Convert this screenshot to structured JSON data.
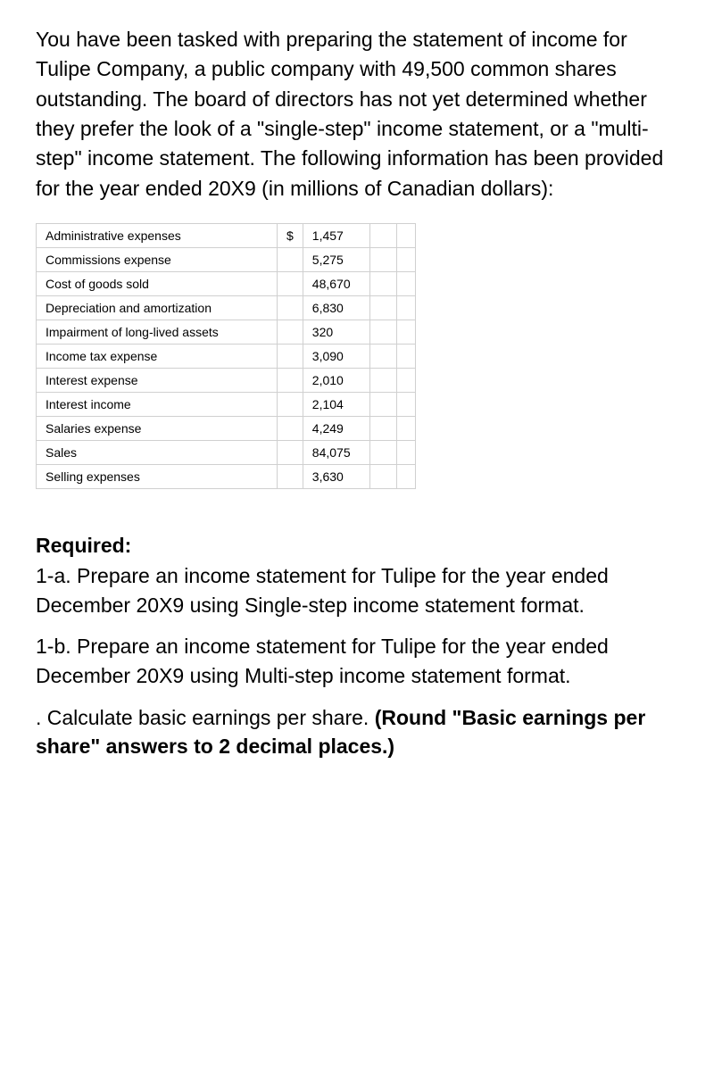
{
  "intro": "You have been tasked with preparing the statement of income for Tulipe Company, a public company with 49,500 common shares outstanding. The board of directors has not yet determined whether they prefer the look of a \"single-step\" income statement, or a \"multi-step\" income statement. The following information has been provided for the year ended 20X9 (in millions of Canadian dollars):",
  "currency_symbol": "$",
  "table": {
    "rows": [
      {
        "label": "Administrative expenses",
        "show_currency": true,
        "value": "1,457"
      },
      {
        "label": "Commissions expense",
        "show_currency": false,
        "value": "5,275"
      },
      {
        "label": "Cost of goods sold",
        "show_currency": false,
        "value": "48,670"
      },
      {
        "label": "Depreciation and amortization",
        "show_currency": false,
        "value": "6,830"
      },
      {
        "label": "Impairment of long-lived assets",
        "show_currency": false,
        "value": "320"
      },
      {
        "label": "Income tax expense",
        "show_currency": false,
        "value": "3,090"
      },
      {
        "label": "Interest expense",
        "show_currency": false,
        "value": "2,010"
      },
      {
        "label": "Interest income",
        "show_currency": false,
        "value": "2,104"
      },
      {
        "label": "Salaries expense",
        "show_currency": false,
        "value": "4,249"
      },
      {
        "label": "Sales",
        "show_currency": false,
        "value": "84,075"
      },
      {
        "label": "Selling expenses",
        "show_currency": false,
        "value": "3,630"
      }
    ],
    "border_color": "#d0d0d0",
    "font_size": 14
  },
  "required_heading": "Required:",
  "req_1a": "1-a. Prepare an income statement for Tulipe for the year ended December 20X9 using Single-step income statement format.",
  "req_1b": "1-b. Prepare an income statement for Tulipe for the year ended December 20X9 using Multi-step income statement format.",
  "req_eps_plain": ". Calculate basic earnings per share. ",
  "req_eps_bold": "(Round \"Basic earnings per share\" answers to 2 decimal places.)",
  "colors": {
    "text": "#000000",
    "background": "#ffffff",
    "table_border": "#d0d0d0"
  },
  "typography": {
    "body_fontsize": 23,
    "table_fontsize": 14
  }
}
